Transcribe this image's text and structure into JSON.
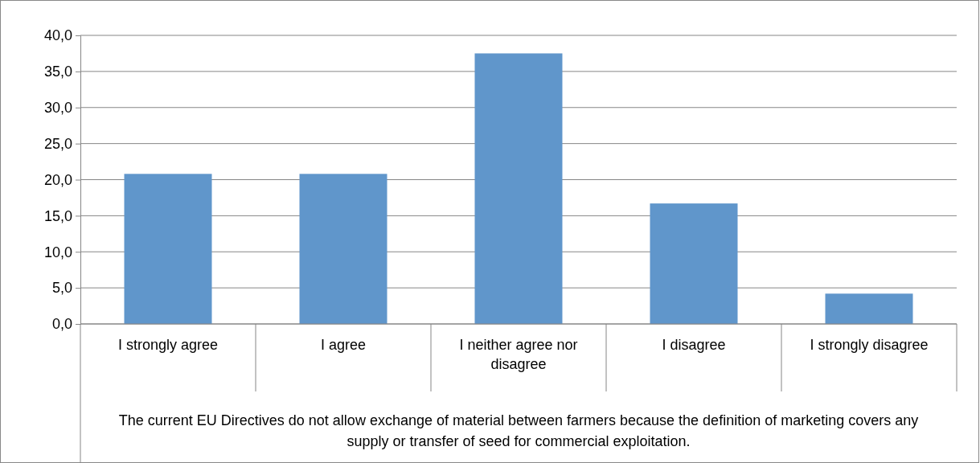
{
  "chart_data": {
    "type": "bar",
    "categories": [
      "I strongly agree",
      "I agree",
      "I neither agree nor disagree",
      "I disagree",
      "I strongly disagree"
    ],
    "values": [
      20.8,
      20.8,
      37.5,
      16.7,
      4.2
    ],
    "color": "#6096cb",
    "xlabel": "The current EU Directives do not allow exchange of material between farmers because the definition of marketing covers any supply or transfer of seed for commercial exploitation.",
    "ylim": [
      0,
      40
    ],
    "yticks": [
      {
        "value": 0,
        "label": "0,0"
      },
      {
        "value": 5,
        "label": "5,0"
      },
      {
        "value": 10,
        "label": "10,0"
      },
      {
        "value": 15,
        "label": "15,0"
      },
      {
        "value": 20,
        "label": "20,0"
      },
      {
        "value": 25,
        "label": "25,0"
      },
      {
        "value": 30,
        "label": "30,0"
      },
      {
        "value": 35,
        "label": "35,0"
      },
      {
        "value": 40,
        "label": "40,0"
      }
    ],
    "grid": "y"
  }
}
